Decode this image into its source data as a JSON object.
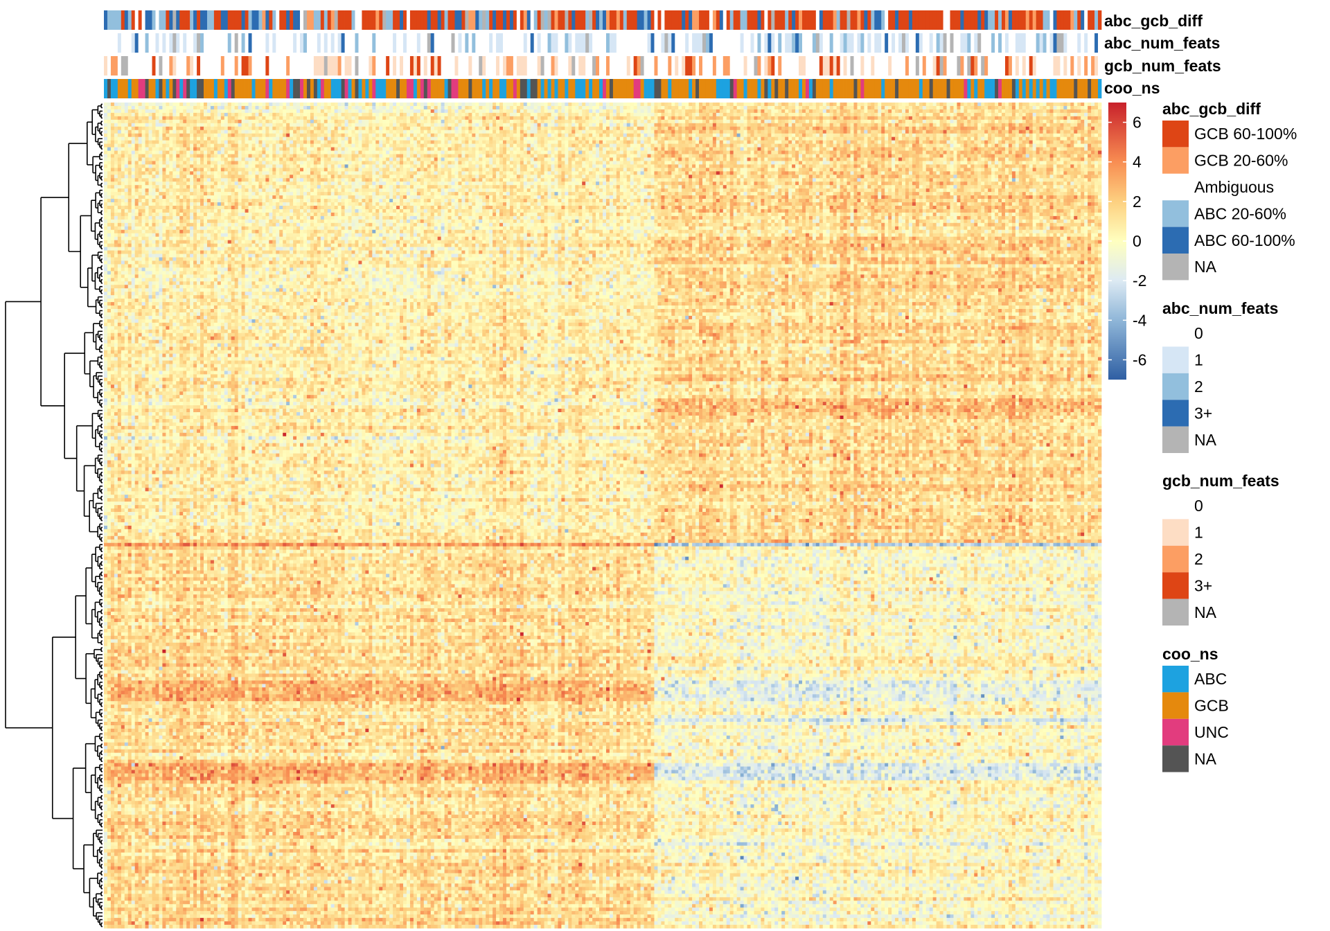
{
  "chart_data": {
    "type": "heatmap",
    "title": "",
    "n_columns": 290,
    "n_rows": 240,
    "column_split_index": 160,
    "row_split_index": 128,
    "color_scale": {
      "name": "",
      "min": -7,
      "max": 7,
      "ticks": [
        "6",
        "4",
        "2",
        "0",
        "-2",
        "-4",
        "-6"
      ],
      "tick_values": [
        6,
        4,
        2,
        0,
        -2,
        -4,
        -6
      ],
      "stops": [
        {
          "value": -7,
          "color": "#2f5fa3"
        },
        {
          "value": -4,
          "color": "#8fb6d8"
        },
        {
          "value": -2,
          "color": "#ddeaf3"
        },
        {
          "value": 0,
          "color": "#ffffbf"
        },
        {
          "value": 2,
          "color": "#fdd080"
        },
        {
          "value": 4,
          "color": "#f88d52"
        },
        {
          "value": 7,
          "color": "#c8212b"
        }
      ]
    },
    "row_clusters": "hierarchical (two main branches)",
    "annotation_tracks": [
      {
        "name": "abc_gcb_diff",
        "values": [
          "GCB 60-100%",
          "GCB 20-60%",
          "Ambiguous",
          "ABC 20-60%",
          "ABC 60-100%",
          "NA"
        ]
      },
      {
        "name": "abc_num_feats",
        "values": [
          "0",
          "1",
          "2",
          "3+",
          "NA"
        ]
      },
      {
        "name": "gcb_num_feats",
        "values": [
          "0",
          "1",
          "2",
          "3+",
          "NA"
        ]
      },
      {
        "name": "coo_ns",
        "values": [
          "ABC",
          "GCB",
          "UNC",
          "NA"
        ]
      }
    ]
  },
  "legends": [
    {
      "title": "abc_gcb_diff",
      "items": [
        {
          "label": "GCB 60-100%",
          "color": "#de4515"
        },
        {
          "label": "GCB 20-60%",
          "color": "#fc9e63"
        },
        {
          "label": "Ambiguous",
          "color": "#ffffff"
        },
        {
          "label": "ABC 20-60%",
          "color": "#92bfdd"
        },
        {
          "label": "ABC 60-100%",
          "color": "#2c6cb2"
        },
        {
          "label": "NA",
          "color": "#b4b4b4"
        }
      ]
    },
    {
      "title": "abc_num_feats",
      "items": [
        {
          "label": "0",
          "color": "#ffffff"
        },
        {
          "label": "1",
          "color": "#d6e6f5"
        },
        {
          "label": "2",
          "color": "#92bfdd"
        },
        {
          "label": "3+",
          "color": "#2c6cb2"
        },
        {
          "label": "NA",
          "color": "#b4b4b4"
        }
      ]
    },
    {
      "title": "gcb_num_feats",
      "items": [
        {
          "label": "0",
          "color": "#ffffff"
        },
        {
          "label": "1",
          "color": "#fdddc4"
        },
        {
          "label": "2",
          "color": "#fc9e63"
        },
        {
          "label": "3+",
          "color": "#de4515"
        },
        {
          "label": "NA",
          "color": "#b4b4b4"
        }
      ]
    },
    {
      "title": "coo_ns",
      "items": [
        {
          "label": "ABC",
          "color": "#1da2e0"
        },
        {
          "label": "GCB",
          "color": "#e5890d"
        },
        {
          "label": "UNC",
          "color": "#e23c7e"
        },
        {
          "label": "NA",
          "color": "#545454"
        }
      ]
    }
  ]
}
